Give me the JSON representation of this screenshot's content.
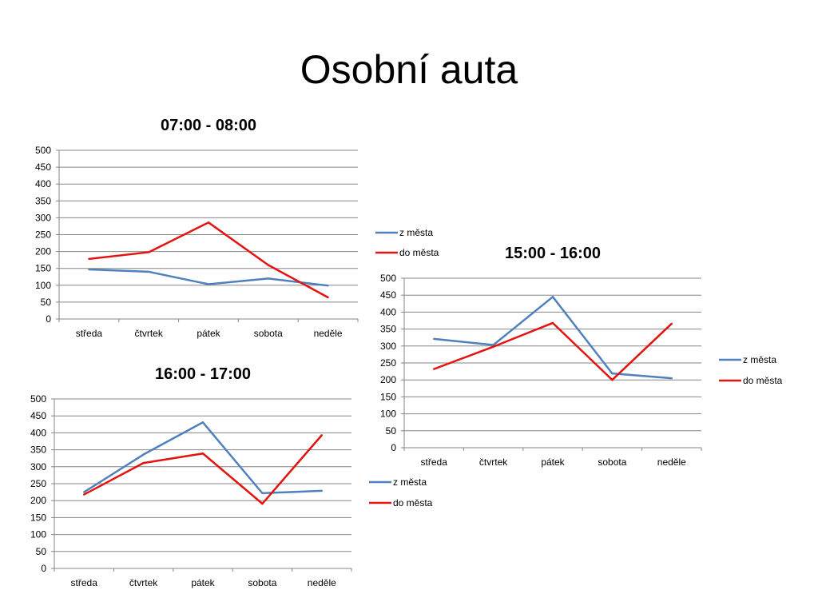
{
  "slide": {
    "title": "Osobní auta"
  },
  "colors": {
    "z_mesta": "#4F81BD",
    "do_mesta": "#E3130F",
    "grid": "#868686"
  },
  "chart_data": [
    {
      "type": "line",
      "title": "07:00 - 08:00",
      "categories": [
        "středa",
        "čtvrtek",
        "pátek",
        "sobota",
        "neděle"
      ],
      "yticks": [
        0,
        50,
        100,
        150,
        200,
        250,
        300,
        350,
        400,
        450,
        500
      ],
      "ylim": [
        0,
        500
      ],
      "grid": true,
      "legend": "right",
      "series": [
        {
          "name": "z města",
          "color": "#4F81BD",
          "values": [
            147,
            140,
            103,
            120,
            99
          ]
        },
        {
          "name": "do města",
          "color": "#E3130F",
          "values": [
            178,
            198,
            286,
            160,
            64
          ]
        }
      ]
    },
    {
      "type": "line",
      "title": "15:00 - 16:00",
      "categories": [
        "středa",
        "čtvrtek",
        "pátek",
        "sobota",
        "neděle"
      ],
      "yticks": [
        0,
        50,
        100,
        150,
        200,
        250,
        300,
        350,
        400,
        450,
        500
      ],
      "ylim": [
        0,
        500
      ],
      "grid": true,
      "legend": "right",
      "series": [
        {
          "name": "z města",
          "color": "#4F81BD",
          "values": [
            321,
            303,
            445,
            219,
            205
          ]
        },
        {
          "name": "do města",
          "color": "#E3130F",
          "values": [
            232,
            298,
            368,
            200,
            366
          ]
        }
      ]
    },
    {
      "type": "line",
      "title": "16:00 - 17:00",
      "categories": [
        "středa",
        "čtvrtek",
        "pátek",
        "sobota",
        "neděle"
      ],
      "yticks": [
        0,
        50,
        100,
        150,
        200,
        250,
        300,
        350,
        400,
        450,
        500
      ],
      "ylim": [
        0,
        500
      ],
      "grid": true,
      "legend": "right",
      "series": [
        {
          "name": "z města",
          "color": "#4F81BD",
          "values": [
            225,
            336,
            431,
            222,
            229
          ]
        },
        {
          "name": "do města",
          "color": "#E3130F",
          "values": [
            218,
            311,
            339,
            191,
            393
          ]
        }
      ]
    }
  ]
}
